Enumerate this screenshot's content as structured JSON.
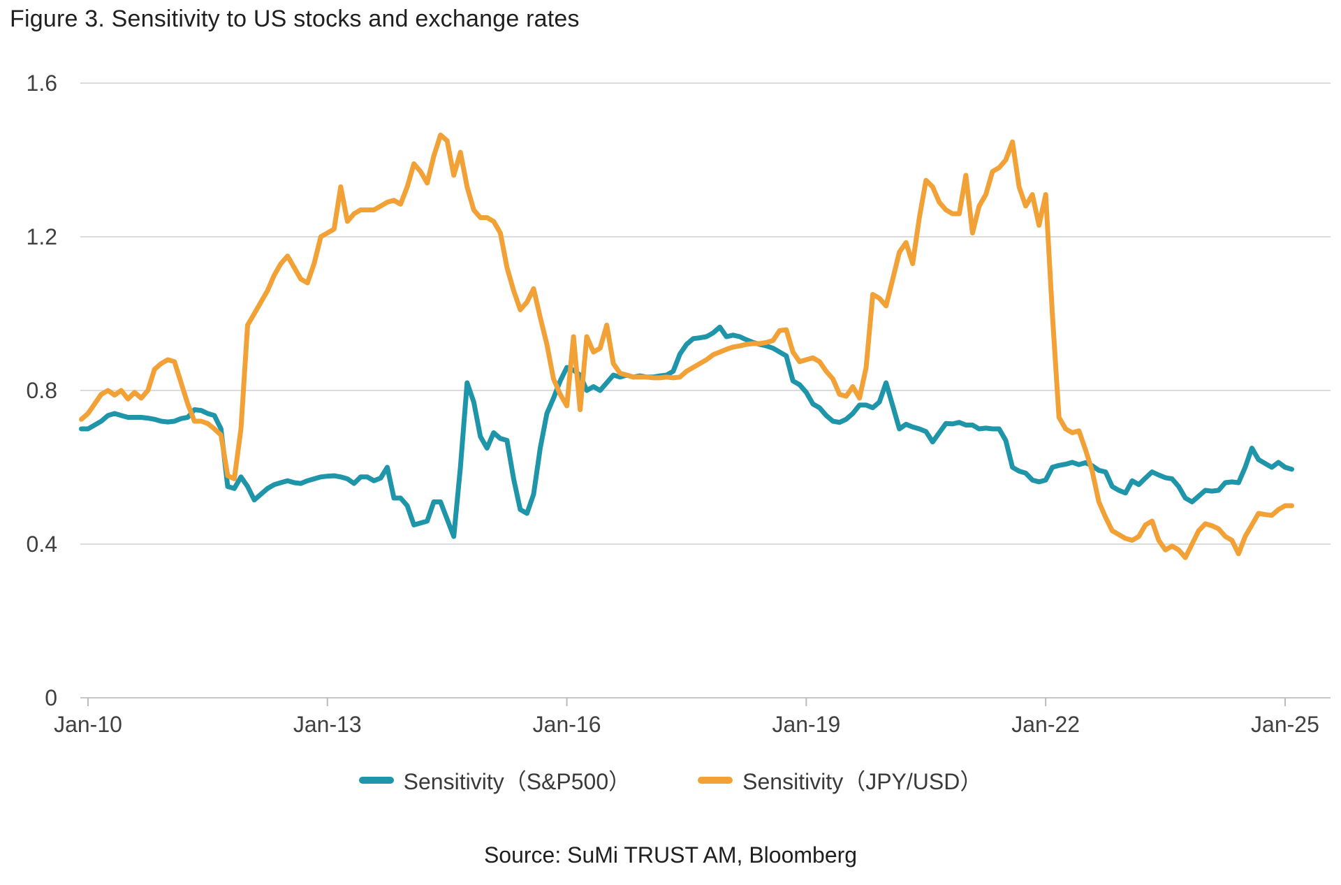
{
  "title": "Figure 3. Sensitivity to US stocks and exchange rates",
  "source": "Source: SuMi TRUST AM, Bloomberg",
  "colors": {
    "sp500": "#1E95A9",
    "jpyusd": "#F1A136",
    "grid": "#DBDBDB",
    "axis": "#C6C6C6",
    "tick": "#BBBBBB",
    "axis_text": "#404040",
    "title_text": "#1F1F1F"
  },
  "legend": {
    "items": [
      {
        "label": "Sensitivity（S&P500）",
        "color_key": "sp500"
      },
      {
        "label": "Sensitivity（JPY/USD）",
        "color_key": "jpyusd"
      }
    ]
  },
  "chart_data": {
    "type": "line",
    "title": "Figure 3. Sensitivity to US stocks and exchange rates",
    "xlabel": "",
    "ylabel": "",
    "ylim": [
      0,
      1.6
    ],
    "grid": true,
    "legend_position": "bottom",
    "start_month": "2009-12",
    "interval": "monthly",
    "yticks": [
      0,
      0.4,
      0.8,
      1.2,
      1.6
    ],
    "ytick_labels": [
      "0",
      "0.4",
      "0.8",
      "1.2",
      "1.6"
    ],
    "xticks": [
      {
        "label": "Jan-10",
        "m": 0
      },
      {
        "label": "Jan-13",
        "m": 36
      },
      {
        "label": "Jan-16",
        "m": 72
      },
      {
        "label": "Jan-19",
        "m": 108
      },
      {
        "label": "Jan-22",
        "m": 144
      },
      {
        "label": "Jan-25",
        "m": 180
      }
    ],
    "series_start_month_offset": -1,
    "series": [
      {
        "name": "Sensitivity（S&P500）",
        "color_key": "sp500",
        "values": [
          0.7,
          0.7,
          0.71,
          0.72,
          0.735,
          0.74,
          0.735,
          0.73,
          0.73,
          0.73,
          0.728,
          0.725,
          0.72,
          0.718,
          0.72,
          0.727,
          0.73,
          0.75,
          0.748,
          0.74,
          0.735,
          0.7,
          0.55,
          0.545,
          0.575,
          0.55,
          0.515,
          0.53,
          0.545,
          0.555,
          0.56,
          0.565,
          0.56,
          0.558,
          0.565,
          0.57,
          0.575,
          0.577,
          0.578,
          0.575,
          0.57,
          0.558,
          0.575,
          0.575,
          0.565,
          0.572,
          0.6,
          0.52,
          0.52,
          0.5,
          0.45,
          0.455,
          0.46,
          0.51,
          0.51,
          0.465,
          0.42,
          0.6,
          0.82,
          0.77,
          0.68,
          0.65,
          0.69,
          0.675,
          0.67,
          0.57,
          0.49,
          0.48,
          0.53,
          0.65,
          0.74,
          0.78,
          0.825,
          0.86,
          0.853,
          0.84,
          0.8,
          0.81,
          0.8,
          0.82,
          0.84,
          0.835,
          0.84,
          0.835,
          0.838,
          0.835,
          0.835,
          0.838,
          0.84,
          0.85,
          0.895,
          0.92,
          0.935,
          0.937,
          0.94,
          0.95,
          0.965,
          0.94,
          0.944,
          0.94,
          0.932,
          0.925,
          0.92,
          0.916,
          0.91,
          0.9,
          0.89,
          0.825,
          0.815,
          0.795,
          0.765,
          0.755,
          0.735,
          0.72,
          0.717,
          0.725,
          0.74,
          0.762,
          0.762,
          0.755,
          0.77,
          0.82,
          0.76,
          0.7,
          0.712,
          0.705,
          0.7,
          0.693,
          0.666,
          0.69,
          0.714,
          0.713,
          0.717,
          0.71,
          0.71,
          0.7,
          0.702,
          0.7,
          0.7,
          0.67,
          0.6,
          0.59,
          0.585,
          0.567,
          0.562,
          0.567,
          0.6,
          0.605,
          0.608,
          0.613,
          0.607,
          0.612,
          0.604,
          0.592,
          0.588,
          0.55,
          0.54,
          0.533,
          0.565,
          0.555,
          0.572,
          0.588,
          0.58,
          0.573,
          0.57,
          0.55,
          0.52,
          0.51,
          0.525,
          0.54,
          0.538,
          0.54,
          0.56,
          0.562,
          0.56,
          0.6,
          0.65,
          0.62,
          0.61,
          0.6,
          0.613,
          0.6,
          0.595
        ]
      },
      {
        "name": "Sensitivity（JPY/USD）",
        "color_key": "jpyusd",
        "values": [
          0.725,
          0.74,
          0.765,
          0.79,
          0.8,
          0.788,
          0.8,
          0.778,
          0.795,
          0.78,
          0.8,
          0.855,
          0.87,
          0.88,
          0.875,
          0.82,
          0.765,
          0.72,
          0.72,
          0.714,
          0.7,
          0.684,
          0.578,
          0.57,
          0.7,
          0.97,
          1.0,
          1.03,
          1.06,
          1.1,
          1.13,
          1.15,
          1.12,
          1.09,
          1.08,
          1.13,
          1.2,
          1.21,
          1.22,
          1.33,
          1.24,
          1.26,
          1.27,
          1.27,
          1.27,
          1.28,
          1.29,
          1.295,
          1.285,
          1.33,
          1.39,
          1.37,
          1.34,
          1.41,
          1.465,
          1.45,
          1.36,
          1.42,
          1.33,
          1.27,
          1.25,
          1.25,
          1.24,
          1.21,
          1.12,
          1.06,
          1.01,
          1.03,
          1.065,
          0.99,
          0.92,
          0.83,
          0.79,
          0.76,
          0.94,
          0.75,
          0.94,
          0.9,
          0.91,
          0.97,
          0.87,
          0.845,
          0.84,
          0.835,
          0.835,
          0.835,
          0.833,
          0.833,
          0.835,
          0.833,
          0.835,
          0.85,
          0.86,
          0.87,
          0.88,
          0.893,
          0.9,
          0.907,
          0.913,
          0.916,
          0.92,
          0.922,
          0.922,
          0.925,
          0.93,
          0.956,
          0.958,
          0.9,
          0.875,
          0.88,
          0.885,
          0.875,
          0.85,
          0.83,
          0.79,
          0.785,
          0.81,
          0.78,
          0.86,
          1.05,
          1.04,
          1.02,
          1.09,
          1.16,
          1.185,
          1.13,
          1.25,
          1.347,
          1.33,
          1.29,
          1.27,
          1.26,
          1.26,
          1.36,
          1.21,
          1.28,
          1.31,
          1.37,
          1.38,
          1.4,
          1.447,
          1.33,
          1.28,
          1.31,
          1.23,
          1.31,
          1.0,
          0.73,
          0.7,
          0.69,
          0.695,
          0.645,
          0.59,
          0.51,
          0.47,
          0.435,
          0.425,
          0.415,
          0.41,
          0.42,
          0.45,
          0.46,
          0.41,
          0.385,
          0.395,
          0.385,
          0.365,
          0.4,
          0.435,
          0.453,
          0.448,
          0.44,
          0.42,
          0.41,
          0.375,
          0.42,
          0.45,
          0.48,
          0.477,
          0.475,
          0.49,
          0.5,
          0.5
        ]
      }
    ]
  }
}
